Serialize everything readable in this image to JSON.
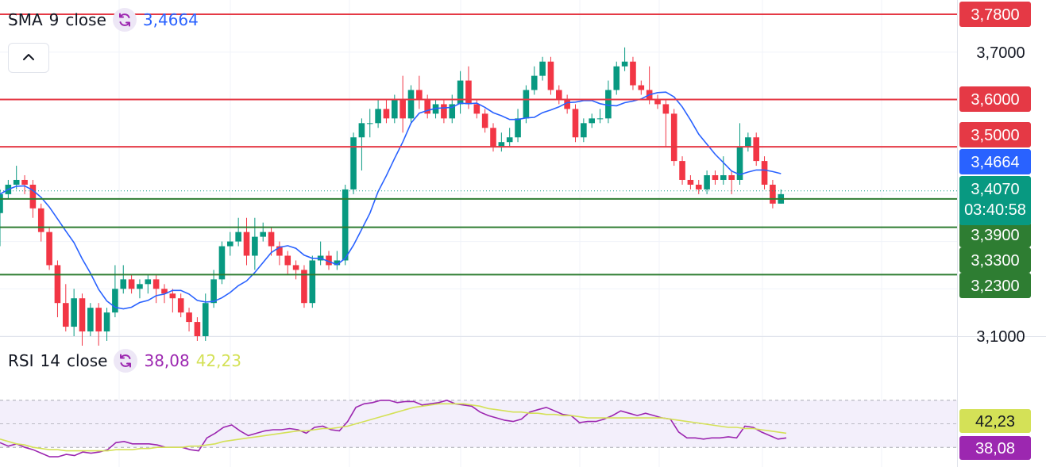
{
  "sma_legend": {
    "name": "SMA",
    "period": "9",
    "source": "close",
    "value": "3,4664",
    "value_color": "#2962ff"
  },
  "rsi_legend": {
    "name": "RSI",
    "period": "14",
    "source": "close",
    "value": "38,08",
    "value_color": "#9c27b0",
    "ma_value": "42,23",
    "ma_color": "#d4e157"
  },
  "collapse_button": {
    "icon": "chevron-up-icon"
  },
  "chart_data": {
    "type": "candlestick",
    "ylim": [
      3.07,
      3.79
    ],
    "y_ticks": [
      "3,7000",
      "3,1000"
    ],
    "y_ticks_values": [
      3.7,
      3.1
    ],
    "colors": {
      "up": "#089981",
      "down": "#f23645",
      "sma": "#2962ff",
      "resistance": "#e53945",
      "support": "#2e7d32",
      "rsi": "#9c27b0",
      "rsi_ma": "#d4e157"
    },
    "horizontal_levels": [
      {
        "label": "3,7800",
        "value": 3.78,
        "kind": "resistance"
      },
      {
        "label": "3,6000",
        "value": 3.6,
        "kind": "resistance"
      },
      {
        "label": "3,5000",
        "value": 3.5,
        "kind": "resistance"
      },
      {
        "label": "3,3900",
        "value": 3.39,
        "kind": "support"
      },
      {
        "label": "3,3300",
        "value": 3.33,
        "kind": "support"
      },
      {
        "label": "3,2300",
        "value": 3.23,
        "kind": "support"
      }
    ],
    "sma_label": {
      "text": "3,4664",
      "value": 3.4664
    },
    "price_label": {
      "text": "3,4070",
      "value": 3.407,
      "countdown": "03:40:58"
    },
    "candles": [
      [
        3.36,
        3.4,
        3.41,
        3.29
      ],
      [
        3.4,
        3.42,
        3.43,
        3.39
      ],
      [
        3.42,
        3.43,
        3.46,
        3.41
      ],
      [
        3.43,
        3.42,
        3.44,
        3.4
      ],
      [
        3.42,
        3.37,
        3.43,
        3.35
      ],
      [
        3.37,
        3.32,
        3.38,
        3.3
      ],
      [
        3.32,
        3.25,
        3.33,
        3.24
      ],
      [
        3.25,
        3.17,
        3.26,
        3.14
      ],
      [
        3.17,
        3.12,
        3.21,
        3.11
      ],
      [
        3.12,
        3.18,
        3.2,
        3.1
      ],
      [
        3.18,
        3.11,
        3.19,
        3.08
      ],
      [
        3.11,
        3.16,
        3.17,
        3.1
      ],
      [
        3.16,
        3.11,
        3.17,
        3.08
      ],
      [
        3.11,
        3.15,
        3.16,
        3.09
      ],
      [
        3.15,
        3.2,
        3.25,
        3.14
      ],
      [
        3.2,
        3.22,
        3.25,
        3.19
      ],
      [
        3.22,
        3.2,
        3.23,
        3.19
      ],
      [
        3.2,
        3.21,
        3.22,
        3.18
      ],
      [
        3.21,
        3.22,
        3.23,
        3.19
      ],
      [
        3.22,
        3.2,
        3.23,
        3.17
      ],
      [
        3.2,
        3.19,
        3.21,
        3.17
      ],
      [
        3.19,
        3.18,
        3.2,
        3.15
      ],
      [
        3.18,
        3.15,
        3.19,
        3.14
      ],
      [
        3.15,
        3.13,
        3.16,
        3.11
      ],
      [
        3.13,
        3.1,
        3.14,
        3.09
      ],
      [
        3.1,
        3.17,
        3.19,
        3.09
      ],
      [
        3.17,
        3.22,
        3.24,
        3.16
      ],
      [
        3.22,
        3.29,
        3.3,
        3.21
      ],
      [
        3.29,
        3.3,
        3.32,
        3.27
      ],
      [
        3.3,
        3.32,
        3.35,
        3.29
      ],
      [
        3.32,
        3.27,
        3.35,
        3.25
      ],
      [
        3.27,
        3.31,
        3.35,
        3.24
      ],
      [
        3.31,
        3.32,
        3.34,
        3.3
      ],
      [
        3.32,
        3.29,
        3.33,
        3.27
      ],
      [
        3.29,
        3.27,
        3.3,
        3.25
      ],
      [
        3.27,
        3.25,
        3.28,
        3.23
      ],
      [
        3.25,
        3.24,
        3.26,
        3.22
      ],
      [
        3.24,
        3.17,
        3.25,
        3.16
      ],
      [
        3.17,
        3.26,
        3.27,
        3.16
      ],
      [
        3.26,
        3.27,
        3.3,
        3.25
      ],
      [
        3.27,
        3.25,
        3.28,
        3.24
      ],
      [
        3.25,
        3.26,
        3.28,
        3.24
      ],
      [
        3.26,
        3.41,
        3.42,
        3.25
      ],
      [
        3.41,
        3.52,
        3.53,
        3.4
      ],
      [
        3.52,
        3.55,
        3.56,
        3.45
      ],
      [
        3.55,
        3.55,
        3.58,
        3.52
      ],
      [
        3.55,
        3.58,
        3.6,
        3.54
      ],
      [
        3.58,
        3.56,
        3.6,
        3.55
      ],
      [
        3.56,
        3.6,
        3.61,
        3.55
      ],
      [
        3.6,
        3.56,
        3.65,
        3.53
      ],
      [
        3.56,
        3.62,
        3.63,
        3.55
      ],
      [
        3.62,
        3.6,
        3.65,
        3.58
      ],
      [
        3.6,
        3.57,
        3.61,
        3.56
      ],
      [
        3.57,
        3.59,
        3.6,
        3.56
      ],
      [
        3.59,
        3.56,
        3.6,
        3.55
      ],
      [
        3.56,
        3.59,
        3.61,
        3.55
      ],
      [
        3.59,
        3.64,
        3.66,
        3.57
      ],
      [
        3.64,
        3.59,
        3.67,
        3.58
      ],
      [
        3.59,
        3.57,
        3.6,
        3.56
      ],
      [
        3.57,
        3.54,
        3.58,
        3.53
      ],
      [
        3.54,
        3.5,
        3.55,
        3.49
      ],
      [
        3.5,
        3.51,
        3.53,
        3.49
      ],
      [
        3.51,
        3.52,
        3.54,
        3.5
      ],
      [
        3.52,
        3.56,
        3.58,
        3.51
      ],
      [
        3.56,
        3.62,
        3.63,
        3.55
      ],
      [
        3.62,
        3.65,
        3.67,
        3.61
      ],
      [
        3.65,
        3.68,
        3.69,
        3.64
      ],
      [
        3.68,
        3.62,
        3.69,
        3.61
      ],
      [
        3.62,
        3.6,
        3.63,
        3.59
      ],
      [
        3.6,
        3.58,
        3.61,
        3.57
      ],
      [
        3.58,
        3.52,
        3.59,
        3.51
      ],
      [
        3.52,
        3.55,
        3.56,
        3.51
      ],
      [
        3.55,
        3.56,
        3.57,
        3.54
      ],
      [
        3.56,
        3.56,
        3.58,
        3.55
      ],
      [
        3.56,
        3.62,
        3.64,
        3.55
      ],
      [
        3.62,
        3.67,
        3.68,
        3.61
      ],
      [
        3.67,
        3.68,
        3.71,
        3.66
      ],
      [
        3.68,
        3.63,
        3.69,
        3.62
      ],
      [
        3.63,
        3.62,
        3.64,
        3.61
      ],
      [
        3.62,
        3.6,
        3.67,
        3.59
      ],
      [
        3.6,
        3.59,
        3.61,
        3.58
      ],
      [
        3.59,
        3.57,
        3.6,
        3.5
      ],
      [
        3.57,
        3.47,
        3.58,
        3.46
      ],
      [
        3.47,
        3.43,
        3.48,
        3.42
      ],
      [
        3.43,
        3.42,
        3.44,
        3.41
      ],
      [
        3.42,
        3.41,
        3.43,
        3.4
      ],
      [
        3.41,
        3.44,
        3.45,
        3.4
      ],
      [
        3.44,
        3.43,
        3.45,
        3.42
      ],
      [
        3.43,
        3.44,
        3.48,
        3.42
      ],
      [
        3.44,
        3.43,
        3.45,
        3.4
      ],
      [
        3.43,
        3.5,
        3.55,
        3.42
      ],
      [
        3.5,
        3.52,
        3.53,
        3.49
      ],
      [
        3.52,
        3.47,
        3.53,
        3.46
      ],
      [
        3.47,
        3.42,
        3.48,
        3.41
      ],
      [
        3.42,
        3.38,
        3.43,
        3.37
      ],
      [
        3.38,
        3.4,
        3.41,
        3.38
      ]
    ],
    "rsi": [
      {
        "name": "RSI",
        "values": [
          34,
          31,
          33,
          30,
          28,
          25,
          22,
          22,
          24,
          23,
          26,
          25,
          26,
          28,
          34,
          35,
          33,
          33,
          33,
          32,
          30,
          30,
          30,
          28,
          27,
          38,
          42,
          47,
          49,
          44,
          40,
          42,
          44,
          45,
          45,
          46,
          45,
          42,
          47,
          48,
          45,
          44,
          52,
          64,
          67,
          68,
          70,
          70,
          68,
          69,
          69,
          66,
          67,
          68,
          70,
          67,
          66,
          65,
          60,
          57,
          55,
          53,
          52,
          54,
          60,
          62,
          64,
          61,
          58,
          57,
          51,
          52,
          52,
          54,
          57,
          61,
          59,
          57,
          59,
          57,
          55,
          54,
          43,
          38,
          38,
          37,
          38,
          38,
          39,
          38,
          48,
          47,
          43,
          40,
          37,
          38
        ]
      },
      {
        "name": "MA",
        "values": [
          37,
          35,
          33,
          32,
          30,
          29,
          28,
          28,
          27,
          27,
          27,
          27,
          27,
          27,
          28,
          28,
          28,
          29,
          29,
          30,
          30,
          30,
          30,
          31,
          31,
          32,
          33,
          35,
          36,
          37,
          38,
          39,
          40,
          41,
          42,
          43,
          44,
          44,
          45,
          46,
          46,
          47,
          48,
          50,
          52,
          54,
          56,
          58,
          60,
          62,
          64,
          65,
          66,
          67,
          67,
          67,
          67,
          66,
          65,
          63,
          62,
          61,
          60,
          60,
          59,
          59,
          58,
          58,
          57,
          57,
          56,
          55,
          55,
          55,
          55,
          55,
          55,
          55,
          55,
          55,
          55,
          54,
          53,
          52,
          51,
          50,
          49,
          48,
          47,
          47,
          46,
          46,
          45,
          44,
          43,
          42
        ]
      }
    ],
    "rsi_range": [
      18,
      78
    ],
    "rsi_bands": [
      70,
      50,
      30
    ]
  }
}
